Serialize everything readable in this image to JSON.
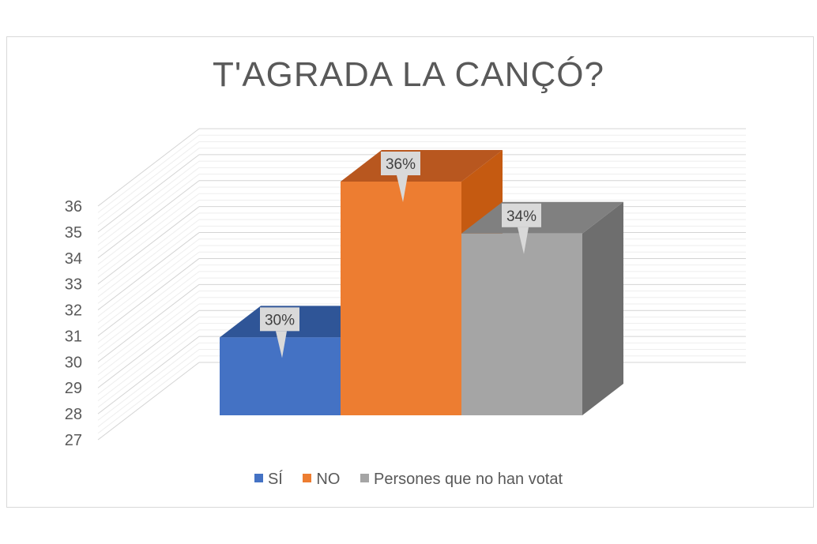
{
  "chart_data": {
    "type": "bar",
    "title": "T'AGRADA LA CANÇÓ?",
    "categories": [
      "SÍ",
      "NO",
      "Persones que no han votat"
    ],
    "values": [
      30,
      36,
      34
    ],
    "data_labels": [
      "30%",
      "36%",
      "34%"
    ],
    "ylim": [
      27,
      36
    ],
    "yticks": [
      27,
      28,
      29,
      30,
      31,
      32,
      33,
      34,
      35,
      36
    ],
    "xlabel": "",
    "ylabel": "",
    "legend": [
      "SÍ",
      "NO",
      "Persones que no han votat"
    ],
    "legend_position": "bottom",
    "grid": true,
    "colors": [
      "#4472c4",
      "#ed7d31",
      "#a5a5a5"
    ],
    "side_colors": [
      "#2f5597",
      "#c55a11",
      "#6e6e6e"
    ],
    "top_colors": [
      "#2f5597",
      "#b8571f",
      "#808080"
    ]
  }
}
